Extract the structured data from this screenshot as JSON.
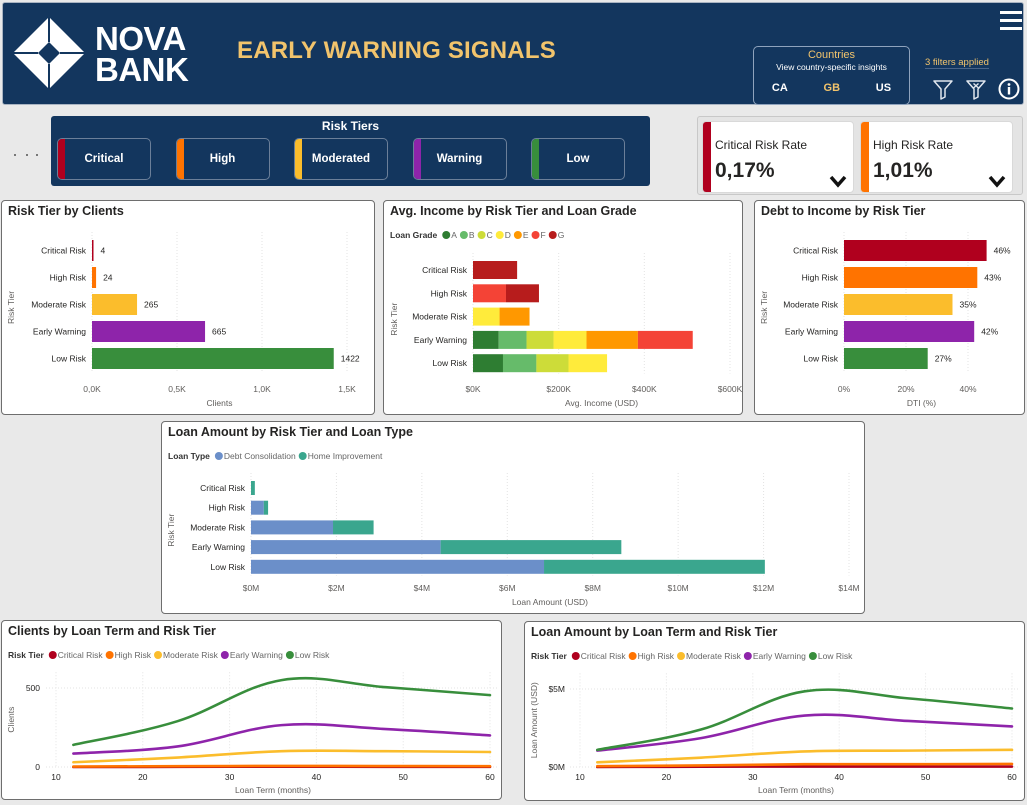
{
  "header": {
    "logo_line1": "NOVA",
    "logo_line2": "BANK",
    "title": "EARLY WARNING SIGNALS",
    "menu_icon": "hamburger-menu-icon",
    "countries": {
      "title": "Countries",
      "subtitle": "View country-specific insights",
      "options": [
        {
          "label": "CA",
          "color": "#ffffff"
        },
        {
          "label": "GB",
          "color": "#f2c46c"
        },
        {
          "label": "US",
          "color": "#ffffff"
        }
      ],
      "selected": "GB"
    },
    "filters_applied": "3 filters applied",
    "icons": [
      "filter-icon",
      "clear-filter-icon",
      "info-icon"
    ]
  },
  "risk_tiers": {
    "title": "Risk Tiers",
    "buttons": [
      {
        "label": "Critical",
        "color": "#b0001e"
      },
      {
        "label": "High",
        "color": "#ff7300"
      },
      {
        "label": "Moderated",
        "color": "#fbbd2c"
      },
      {
        "label": "Warning",
        "color": "#8e24aa"
      },
      {
        "label": "Low",
        "color": "#388e3c"
      }
    ]
  },
  "kpis": [
    {
      "label": "Critical Risk Rate",
      "value": "0,17%",
      "color": "#b0001e"
    },
    {
      "label": "High Risk Rate",
      "value": "1,01%",
      "color": "#ff7300"
    }
  ],
  "chart_data": [
    {
      "id": "clients",
      "type": "bar",
      "title": "Risk Tier by Clients",
      "xlabel": "Clients",
      "ylabel": "Risk Tier",
      "categories": [
        "Critical Risk",
        "High Risk",
        "Moderate Risk",
        "Early Warning",
        "Low Risk"
      ],
      "values": [
        4,
        24,
        265,
        665,
        1422
      ],
      "data_labels": [
        "4",
        "24",
        "265",
        "665",
        "1422"
      ],
      "colors": [
        "#b0001e",
        "#ff7300",
        "#fbbd2c",
        "#8e24aa",
        "#388e3c"
      ],
      "xlim": [
        0,
        1500
      ],
      "xticks": [
        0,
        500,
        1000,
        1500
      ],
      "xtick_labels": [
        "0,0K",
        "0,5K",
        "1,0K",
        "1,5K"
      ],
      "grid": true
    },
    {
      "id": "income",
      "type": "bar",
      "stacked": true,
      "title": "Avg. Income by Risk Tier and Loan Grade",
      "xlabel": "Avg. Income (USD)",
      "ylabel": "Risk Tier",
      "legend_title": "Loan Grade",
      "legend_position": "top-left",
      "categories": [
        "Critical Risk",
        "High Risk",
        "Moderate Risk",
        "Early Warning",
        "Low Risk"
      ],
      "series": [
        {
          "name": "A",
          "color": "#2e7d32",
          "values": [
            0,
            0,
            0,
            60000,
            70000
          ]
        },
        {
          "name": "B",
          "color": "#66bb6a",
          "values": [
            0,
            0,
            0,
            65000,
            78000
          ]
        },
        {
          "name": "C",
          "color": "#cddc39",
          "values": [
            0,
            0,
            0,
            63000,
            75000
          ]
        },
        {
          "name": "D",
          "color": "#ffeb3b",
          "values": [
            0,
            0,
            62000,
            77000,
            90000
          ]
        },
        {
          "name": "E",
          "color": "#ff9800",
          "values": [
            0,
            0,
            70000,
            120000,
            0
          ]
        },
        {
          "name": "F",
          "color": "#f44336",
          "values": [
            0,
            77000,
            0,
            128000,
            0
          ]
        },
        {
          "name": "G",
          "color": "#b71c1c",
          "values": [
            103000,
            77000,
            0,
            0,
            0
          ]
        }
      ],
      "xlim": [
        0,
        600000
      ],
      "xticks": [
        0,
        200000,
        400000,
        600000
      ],
      "xtick_labels": [
        "$0K",
        "$200K",
        "$400K",
        "$600K"
      ],
      "grid": true
    },
    {
      "id": "dti",
      "type": "bar",
      "title": "Debt to Income by Risk Tier",
      "xlabel": "DTI (%)",
      "ylabel": "Risk Tier",
      "categories": [
        "Critical Risk",
        "High Risk",
        "Moderate Risk",
        "Early Warning",
        "Low Risk"
      ],
      "values": [
        46,
        43,
        35,
        42,
        27
      ],
      "data_labels": [
        "46%",
        "43%",
        "35%",
        "42%",
        "27%"
      ],
      "colors": [
        "#b0001e",
        "#ff7300",
        "#fbbd2c",
        "#8e24aa",
        "#388e3c"
      ],
      "xlim": [
        0,
        50
      ],
      "xticks": [
        0,
        20,
        40
      ],
      "xtick_labels": [
        "0%",
        "20%",
        "40%"
      ],
      "grid": true
    },
    {
      "id": "loanamt",
      "type": "bar",
      "stacked": true,
      "title": "Loan Amount by Risk Tier and Loan Type",
      "xlabel": "Loan Amount (USD)",
      "ylabel": "Risk Tier",
      "legend_title": "Loan Type",
      "legend_position": "top-left",
      "categories": [
        "Critical Risk",
        "High Risk",
        "Moderate Risk",
        "Early Warning",
        "Low Risk"
      ],
      "series": [
        {
          "name": "Debt Consolidation",
          "color": "#6b8fc9",
          "values": [
            0,
            300000,
            1920000,
            4440000,
            6860000
          ]
        },
        {
          "name": "Home Improvement",
          "color": "#3aa68e",
          "values": [
            90000,
            100000,
            950000,
            4230000,
            5170000
          ]
        }
      ],
      "xlim": [
        0,
        14000000
      ],
      "xticks": [
        0,
        2000000,
        4000000,
        6000000,
        8000000,
        10000000,
        12000000,
        14000000
      ],
      "xtick_labels": [
        "$0M",
        "$2M",
        "$4M",
        "$6M",
        "$8M",
        "$10M",
        "$12M",
        "$14M"
      ],
      "grid": true
    },
    {
      "id": "clients_term",
      "type": "line",
      "title": "Clients by Loan Term and Risk Tier",
      "xlabel": "Loan Term (months)",
      "ylabel": "Clients",
      "legend_title": "Risk Tier",
      "legend_position": "top-left",
      "x": [
        12,
        24,
        36,
        48,
        60
      ],
      "series": [
        {
          "name": "Critical Risk",
          "color": "#b0001e",
          "values": [
            0,
            1,
            2,
            1,
            1
          ]
        },
        {
          "name": "High Risk",
          "color": "#ff7300",
          "values": [
            3,
            5,
            7,
            6,
            5
          ]
        },
        {
          "name": "Moderate Risk",
          "color": "#fbbd2c",
          "values": [
            30,
            60,
            100,
            100,
            95
          ]
        },
        {
          "name": "Early Warning",
          "color": "#8e24aa",
          "values": [
            85,
            130,
            265,
            240,
            200
          ]
        },
        {
          "name": "Low Risk",
          "color": "#388e3c",
          "values": [
            140,
            290,
            550,
            505,
            455
          ]
        }
      ],
      "xlim": [
        10,
        60
      ],
      "ylim": [
        0,
        600
      ],
      "xticks": [
        10,
        20,
        30,
        40,
        50,
        60
      ],
      "yticks": [
        0,
        500
      ],
      "ytick_labels": [
        "0",
        "500"
      ],
      "grid": true
    },
    {
      "id": "amount_term",
      "type": "line",
      "title": "Loan Amount by Loan Term and Risk Tier",
      "xlabel": "Loan Term (months)",
      "ylabel": "Loan Amount (USD)",
      "legend_title": "Risk Tier",
      "legend_position": "top-left",
      "x": [
        12,
        24,
        36,
        48,
        60
      ],
      "series": [
        {
          "name": "Critical Risk",
          "color": "#b0001e",
          "values": [
            0,
            20000,
            30000,
            30000,
            30000
          ]
        },
        {
          "name": "High Risk",
          "color": "#ff7300",
          "values": [
            50000,
            100000,
            180000,
            180000,
            200000
          ]
        },
        {
          "name": "Moderate Risk",
          "color": "#fbbd2c",
          "values": [
            300000,
            600000,
            1000000,
            1050000,
            1100000
          ]
        },
        {
          "name": "Early Warning",
          "color": "#8e24aa",
          "values": [
            1050000,
            1850000,
            3300000,
            2950000,
            2600000
          ]
        },
        {
          "name": "Low Risk",
          "color": "#388e3c",
          "values": [
            1100000,
            2400000,
            4850000,
            4400000,
            3750000
          ]
        }
      ],
      "xlim": [
        10,
        60
      ],
      "ylim": [
        0,
        6000000
      ],
      "xticks": [
        10,
        20,
        30,
        40,
        50,
        60
      ],
      "yticks": [
        0,
        5000000
      ],
      "ytick_labels": [
        "$0M",
        "$5M"
      ],
      "grid": true
    }
  ]
}
